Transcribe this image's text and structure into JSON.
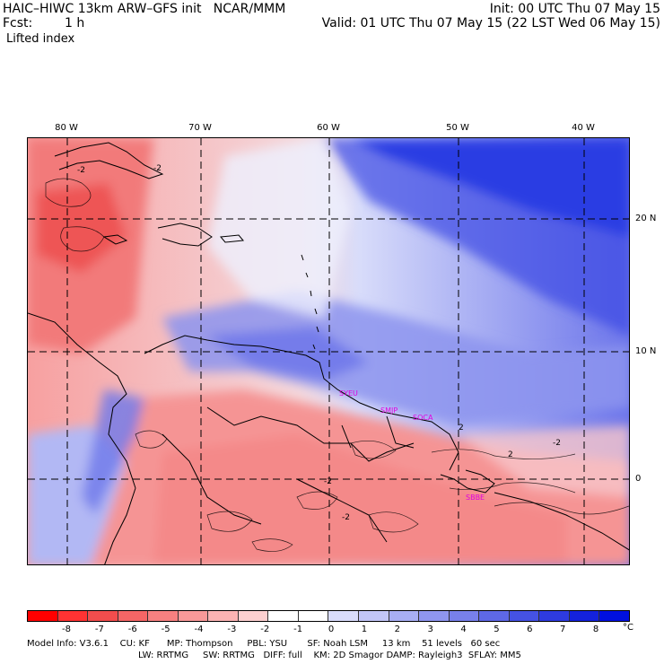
{
  "header": {
    "title_left": "HAIC–HIWC 13km ARW–GFS init   NCAR/MMM",
    "forecast_label": "Fcst:",
    "forecast_value": "1 h",
    "field_name": "Lifted index",
    "init": "Init: 00 UTC Thu 07 May 15",
    "valid": "Valid: 01 UTC Thu 07 May 15 (22 LST Wed 06 May 15)"
  },
  "map": {
    "lon_labels": [
      "80 W",
      "70 W",
      "60 W",
      "50 W",
      "40 W"
    ],
    "lat_labels": [
      "20 N",
      "10 N",
      "0"
    ],
    "contour_labels": [
      "-2",
      "-2",
      "2",
      "2",
      "-2",
      "-2",
      "-2"
    ],
    "stations": [
      "SYEU",
      "SMJP",
      "SOCA",
      "SBBE"
    ]
  },
  "colorbar": {
    "colors": [
      "#ff0000",
      "#ff3333",
      "#f24d4d",
      "#f56666",
      "#f78080",
      "#f99999",
      "#fbb3b3",
      "#fdd0d0",
      "#ffffff",
      "#ffffff",
      "#d9dcfb",
      "#c2c6f7",
      "#a8aef3",
      "#8f96ef",
      "#7880eb",
      "#5e68e6",
      "#4552e3",
      "#2e3be0",
      "#1422dd",
      "#0010e0"
    ],
    "labels": [
      "-8",
      "-7",
      "-6",
      "-5",
      "-4",
      "-3",
      "-2",
      "-1",
      "0",
      "1",
      "2",
      "3",
      "4",
      "5",
      "6",
      "7",
      "8"
    ],
    "unit": "°C"
  },
  "footer": {
    "line1": "Model Info: V3.6.1    CU: KF      MP: Thompson     PBL: YSU       SF: Noah LSM     13 km    51 levels   60 sec",
    "line2": "LW: RRTMG     SW: RRTMG   DIFF: full    KM: 2D Smagor DAMP: Rayleigh3  SFLAY: MM5"
  }
}
